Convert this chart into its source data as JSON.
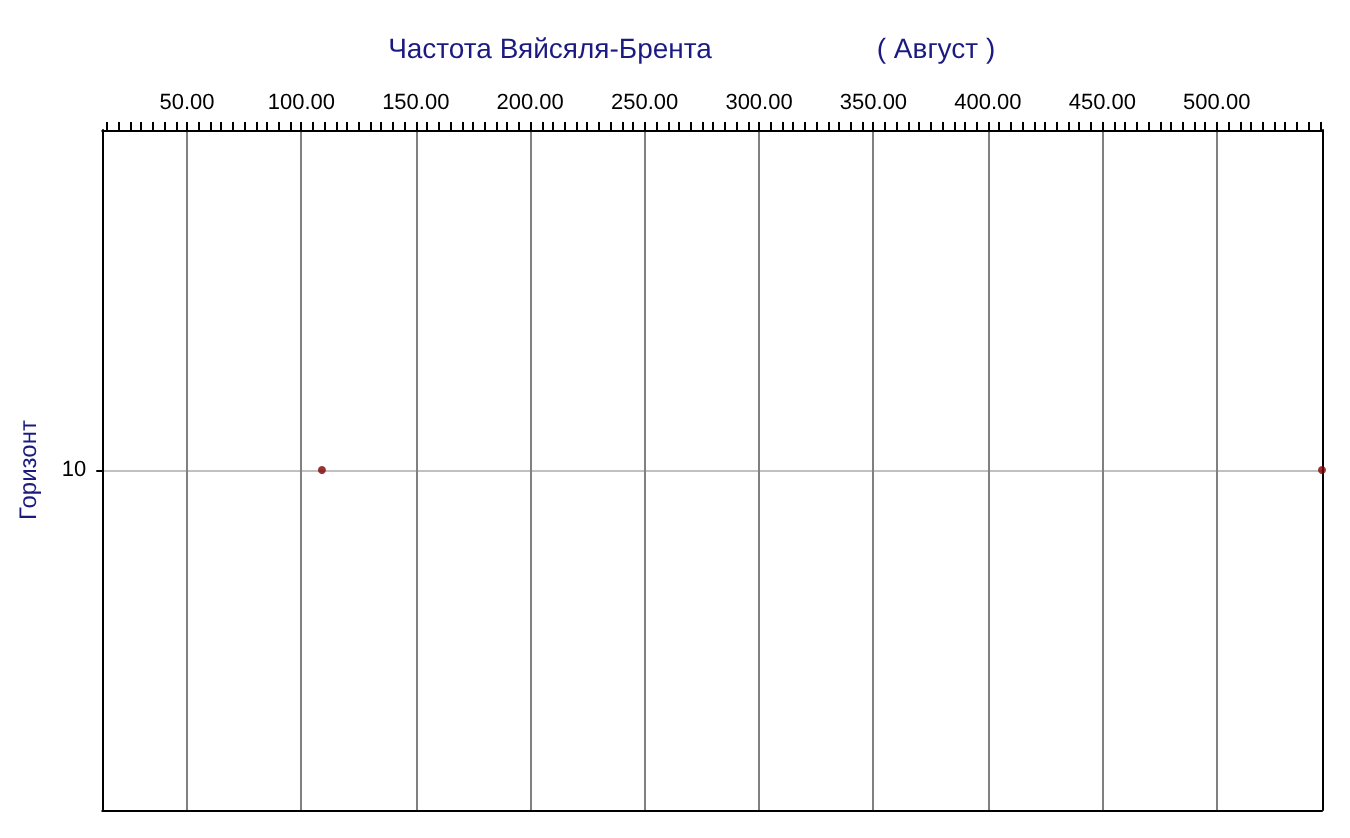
{
  "chart_data": {
    "type": "scatter",
    "title": "Частота Вяйсяля-Брента",
    "subtitle": "( Август )",
    "ylabel": "Горизонт",
    "orientation": "horizontal",
    "categories": [
      "10"
    ],
    "series": [
      {
        "color": "#800000",
        "values": [
          109
        ]
      },
      {
        "color": "#800000",
        "values": [
          546
        ]
      }
    ],
    "xlim": [
      13,
      546
    ],
    "xticks": [
      {
        "value": 15,
        "label": null
      },
      {
        "value": 20,
        "label": null
      },
      {
        "value": 25,
        "label": null
      },
      {
        "value": 30,
        "label": null
      },
      {
        "value": 35,
        "label": null
      },
      {
        "value": 40,
        "label": null
      },
      {
        "value": 45,
        "label": null
      },
      {
        "value": 50,
        "label": "50.00"
      },
      {
        "value": 55,
        "label": null
      },
      {
        "value": 60,
        "label": null
      },
      {
        "value": 65,
        "label": null
      },
      {
        "value": 70,
        "label": null
      },
      {
        "value": 75,
        "label": null
      },
      {
        "value": 80,
        "label": null
      },
      {
        "value": 85,
        "label": null
      },
      {
        "value": 90,
        "label": null
      },
      {
        "value": 95,
        "label": null
      },
      {
        "value": 100,
        "label": "100.00"
      },
      {
        "value": 105,
        "label": null
      },
      {
        "value": 110,
        "label": null
      },
      {
        "value": 115,
        "label": null
      },
      {
        "value": 120,
        "label": null
      },
      {
        "value": 125,
        "label": null
      },
      {
        "value": 130,
        "label": null
      },
      {
        "value": 135,
        "label": null
      },
      {
        "value": 140,
        "label": null
      },
      {
        "value": 145,
        "label": null
      },
      {
        "value": 150,
        "label": "150.00"
      },
      {
        "value": 155,
        "label": null
      },
      {
        "value": 160,
        "label": null
      },
      {
        "value": 165,
        "label": null
      },
      {
        "value": 170,
        "label": null
      },
      {
        "value": 175,
        "label": null
      },
      {
        "value": 180,
        "label": null
      },
      {
        "value": 185,
        "label": null
      },
      {
        "value": 190,
        "label": null
      },
      {
        "value": 195,
        "label": null
      },
      {
        "value": 200,
        "label": "200.00"
      },
      {
        "value": 205,
        "label": null
      },
      {
        "value": 210,
        "label": null
      },
      {
        "value": 215,
        "label": null
      },
      {
        "value": 220,
        "label": null
      },
      {
        "value": 225,
        "label": null
      },
      {
        "value": 230,
        "label": null
      },
      {
        "value": 235,
        "label": null
      },
      {
        "value": 240,
        "label": null
      },
      {
        "value": 245,
        "label": null
      },
      {
        "value": 250,
        "label": "250.00"
      },
      {
        "value": 255,
        "label": null
      },
      {
        "value": 260,
        "label": null
      },
      {
        "value": 265,
        "label": null
      },
      {
        "value": 270,
        "label": null
      },
      {
        "value": 275,
        "label": null
      },
      {
        "value": 280,
        "label": null
      },
      {
        "value": 285,
        "label": null
      },
      {
        "value": 290,
        "label": null
      },
      {
        "value": 295,
        "label": null
      },
      {
        "value": 300,
        "label": "300.00"
      },
      {
        "value": 305,
        "label": null
      },
      {
        "value": 310,
        "label": null
      },
      {
        "value": 315,
        "label": null
      },
      {
        "value": 320,
        "label": null
      },
      {
        "value": 325,
        "label": null
      },
      {
        "value": 330,
        "label": null
      },
      {
        "value": 335,
        "label": null
      },
      {
        "value": 340,
        "label": null
      },
      {
        "value": 345,
        "label": null
      },
      {
        "value": 350,
        "label": "350.00"
      },
      {
        "value": 355,
        "label": null
      },
      {
        "value": 360,
        "label": null
      },
      {
        "value": 365,
        "label": null
      },
      {
        "value": 370,
        "label": null
      },
      {
        "value": 375,
        "label": null
      },
      {
        "value": 380,
        "label": null
      },
      {
        "value": 385,
        "label": null
      },
      {
        "value": 390,
        "label": null
      },
      {
        "value": 395,
        "label": null
      },
      {
        "value": 400,
        "label": "400.00"
      },
      {
        "value": 405,
        "label": null
      },
      {
        "value": 410,
        "label": null
      },
      {
        "value": 415,
        "label": null
      },
      {
        "value": 420,
        "label": null
      },
      {
        "value": 425,
        "label": null
      },
      {
        "value": 430,
        "label": null
      },
      {
        "value": 435,
        "label": null
      },
      {
        "value": 440,
        "label": null
      },
      {
        "value": 445,
        "label": null
      },
      {
        "value": 450,
        "label": "450.00"
      },
      {
        "value": 455,
        "label": null
      },
      {
        "value": 460,
        "label": null
      },
      {
        "value": 465,
        "label": null
      },
      {
        "value": 470,
        "label": null
      },
      {
        "value": 475,
        "label": null
      },
      {
        "value": 480,
        "label": null
      },
      {
        "value": 485,
        "label": null
      },
      {
        "value": 490,
        "label": null
      },
      {
        "value": 495,
        "label": null
      },
      {
        "value": 500,
        "label": "500.00"
      },
      {
        "value": 505,
        "label": null
      },
      {
        "value": 510,
        "label": null
      },
      {
        "value": 515,
        "label": null
      },
      {
        "value": 520,
        "label": null
      },
      {
        "value": 525,
        "label": null
      },
      {
        "value": 530,
        "label": null
      },
      {
        "value": 535,
        "label": null
      },
      {
        "value": 540,
        "label": null
      },
      {
        "value": 545,
        "label": null
      }
    ],
    "grid": true,
    "marker": "circle"
  }
}
